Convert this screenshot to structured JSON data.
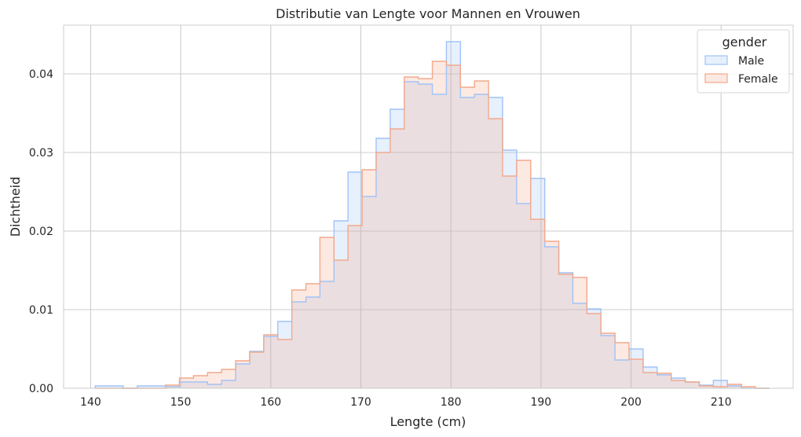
{
  "chart_data": {
    "type": "histogram",
    "title": "Distributie van Lengte voor Mannen en Vrouwen",
    "xlabel": "Lengte (cm)",
    "ylabel": "Dichtheid",
    "xlim": [
      137,
      218
    ],
    "ylim": [
      0,
      0.0462
    ],
    "xticks": [
      140,
      150,
      160,
      170,
      180,
      190,
      200,
      210
    ],
    "yticks": [
      0.0,
      0.01,
      0.02,
      0.03,
      0.04
    ],
    "ytick_labels": [
      "0.00",
      "0.01",
      "0.02",
      "0.03",
      "0.04"
    ],
    "grid": true,
    "legend": {
      "title": "gender",
      "position": "top-right"
    },
    "bin_edges": [
      140.5,
      142.06,
      143.62,
      145.18,
      146.74,
      148.3,
      149.86,
      151.42,
      152.98,
      154.54,
      156.1,
      157.66,
      159.22,
      160.78,
      162.34,
      163.9,
      165.46,
      167.02,
      168.58,
      170.14,
      171.7,
      173.26,
      174.82,
      176.38,
      177.94,
      179.5,
      181.06,
      182.62,
      184.18,
      185.74,
      187.3,
      188.86,
      190.42,
      191.98,
      193.54,
      195.1,
      196.66,
      198.22,
      199.78,
      201.34,
      202.9,
      204.46,
      206.02,
      207.58,
      209.14,
      210.7,
      212.26,
      213.82,
      215.38
    ],
    "series": [
      {
        "name": "Male",
        "color": "#a1c3f7",
        "fill": "rgba(161,195,247,0.25)",
        "values": [
          0.0003,
          0.0003,
          0.0,
          0.0003,
          0.0003,
          0.0002,
          0.0008,
          0.0008,
          0.0005,
          0.001,
          0.0031,
          0.0047,
          0.0066,
          0.0085,
          0.011,
          0.0116,
          0.0136,
          0.0213,
          0.0275,
          0.0244,
          0.0318,
          0.0355,
          0.039,
          0.0387,
          0.0374,
          0.0441,
          0.037,
          0.0374,
          0.037,
          0.0303,
          0.0235,
          0.0267,
          0.018,
          0.0147,
          0.0108,
          0.0101,
          0.0067,
          0.0036,
          0.005,
          0.0027,
          0.0017,
          0.0013,
          0.0008,
          0.0004,
          0.001,
          0.0003,
          0.0,
          0.0
        ]
      },
      {
        "name": "Female",
        "color": "#f2a98b",
        "fill": "rgba(242,169,139,0.25)",
        "values": [
          0.0,
          0.0,
          0.0,
          0.0,
          0.0,
          0.0004,
          0.0013,
          0.0016,
          0.002,
          0.0024,
          0.0035,
          0.0046,
          0.0068,
          0.0062,
          0.0125,
          0.0133,
          0.0192,
          0.0163,
          0.0207,
          0.0278,
          0.03,
          0.033,
          0.0396,
          0.0394,
          0.0416,
          0.0411,
          0.0383,
          0.0391,
          0.0343,
          0.027,
          0.029,
          0.0215,
          0.0187,
          0.0145,
          0.0141,
          0.0095,
          0.007,
          0.0058,
          0.0037,
          0.002,
          0.0019,
          0.001,
          0.0008,
          0.0003,
          0.0002,
          0.0005,
          0.0002,
          0.0
        ]
      }
    ]
  }
}
